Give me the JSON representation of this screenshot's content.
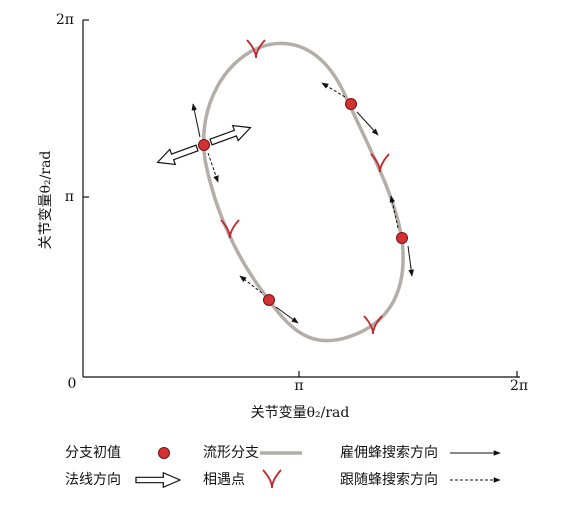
{
  "axes": {
    "y_label": "关节变量θ₂/rad",
    "x_label": "关节变量θ₂/rad",
    "y_ticks": [
      "2π",
      "π"
    ],
    "origin": "0",
    "x_ticks": [
      "π",
      "2π"
    ]
  },
  "legend": {
    "initial_value": "分支初值",
    "manifold_branch": "流形分支",
    "employed_bee_direction": "雇佣蜂搜索方向",
    "normal_direction": "法线方向",
    "meeting_point": "相遇点",
    "onlooker_bee_direction": "跟随蜂搜索方向"
  }
}
